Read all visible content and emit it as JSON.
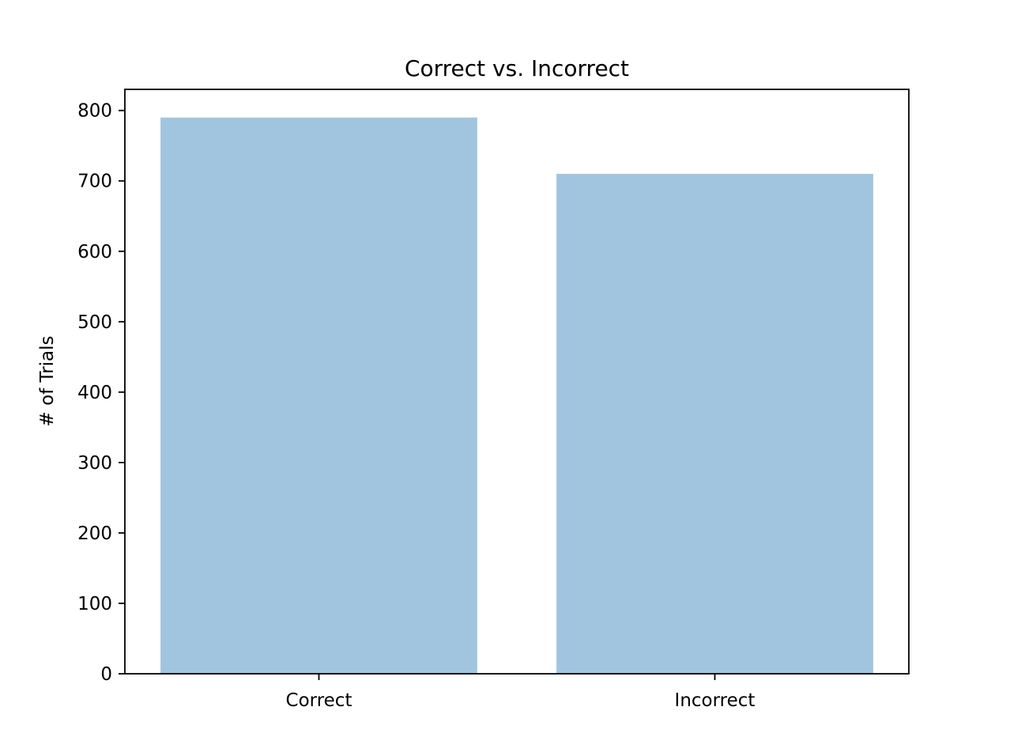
{
  "chart_data": {
    "type": "bar",
    "title": "Correct vs. Incorrect",
    "xlabel": "",
    "ylabel": "# of Trials",
    "categories": [
      "Correct",
      "Incorrect"
    ],
    "values": [
      790,
      710
    ],
    "ylim": [
      0,
      830
    ],
    "yticks": [
      0,
      100,
      200,
      300,
      400,
      500,
      600,
      700,
      800
    ],
    "bar_color": "#a1c5df",
    "alpha": 0.5,
    "grid": false,
    "legend": "none"
  }
}
